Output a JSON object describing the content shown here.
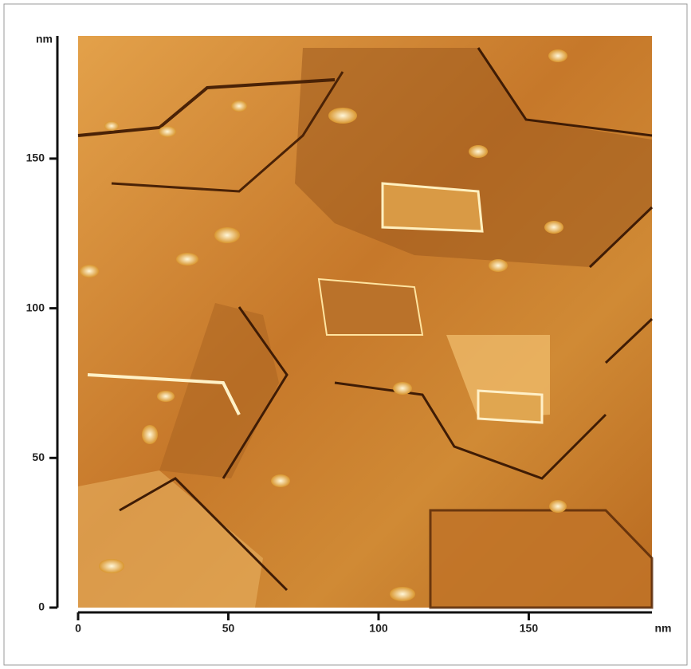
{
  "chart_data": {
    "type": "image",
    "x_label": "nm",
    "y_label": "nm",
    "xlim": [
      0,
      191
    ],
    "ylim": [
      0,
      191
    ],
    "xticks": [
      0,
      50,
      100,
      150
    ],
    "yticks": [
      0,
      50,
      100,
      150
    ]
  }
}
